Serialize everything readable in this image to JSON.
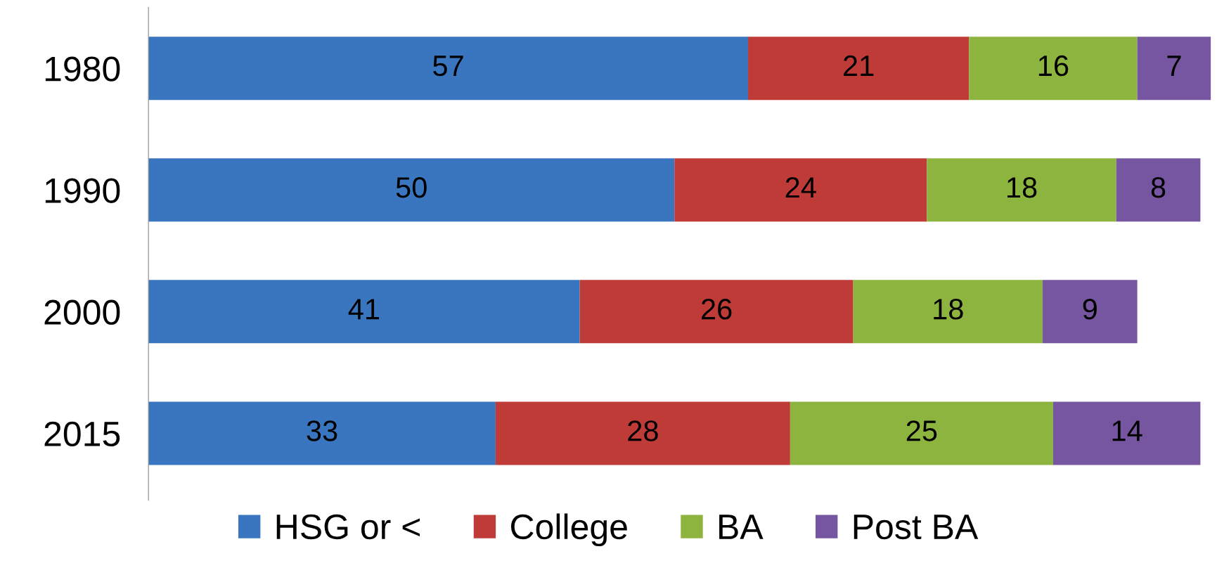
{
  "chart_data": {
    "type": "bar",
    "orientation": "horizontal",
    "stacked": true,
    "data_labels": true,
    "legend": "bottom",
    "categories": [
      "1980",
      "1990",
      "2000",
      "2015"
    ],
    "series": [
      {
        "name": "HSG or <",
        "color": "#3a76c0",
        "values": [
          57,
          50,
          41,
          33
        ]
      },
      {
        "name": "College",
        "color": "#bf3b38",
        "values": [
          21,
          24,
          26,
          28
        ]
      },
      {
        "name": "BA",
        "color": "#8db43e",
        "values": [
          16,
          18,
          18,
          25
        ]
      },
      {
        "name": "Post BA",
        "color": "#7656a0",
        "values": [
          7,
          8,
          9,
          14
        ]
      }
    ]
  }
}
